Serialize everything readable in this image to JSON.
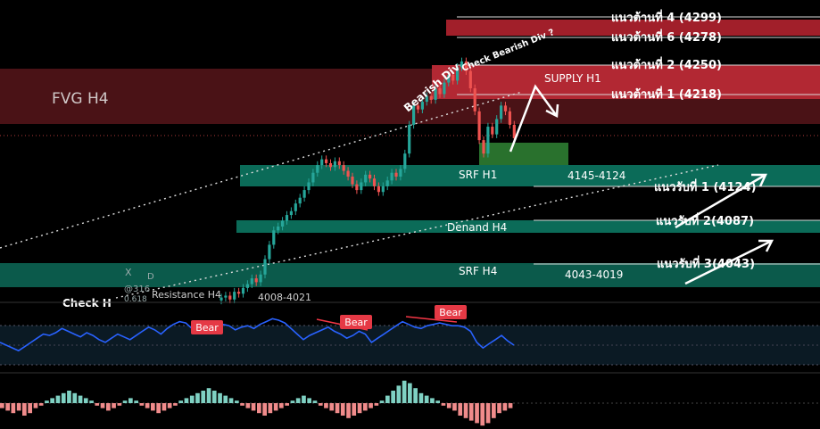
{
  "zones": {
    "fvg_h4": "FVG H4",
    "supply_h1": "SUPPLY H1",
    "srf_h1": "SRF H1",
    "srf_h1_range": "4145-4124",
    "demand_h4": "Denand H4",
    "srf_h4": "SRF H4",
    "srf_h4_range": "4043-4019",
    "resistance_h4": "Resistance H4",
    "resistance_h4_range": "4008-4021",
    "check_h": "Check H"
  },
  "levels": {
    "r4": "แนวต้านที่ 4 (4299)",
    "r6": "แนวต้านที่ 6 (4278)",
    "r2": "แนวต้านที่ 2 (4250)",
    "r1": "แนวต้านที่ 1 (4218)",
    "s1": "แนวรับที่ 1 (4124)",
    "s2": "แนวรับที่ 2(4087)",
    "s3": "แนวรับที่ 3(4043)"
  },
  "annotations": {
    "bearish_div": "Bearish Div",
    "check_bearish_div": "Check Bearish Div ?",
    "bear": [
      "Bear",
      "Bear",
      "Bear"
    ],
    "misc": [
      "X",
      "D",
      "@316",
      "0.618"
    ]
  },
  "colors": {
    "up": "#26a69a",
    "down": "#ef5350",
    "rsi_line": "#2962ff",
    "supply_red": "#b22833",
    "fvg_dark_red": "#4a1216",
    "demand_green": "#0b6b58",
    "bear_label": "#e53945",
    "div_line": "#f23645"
  },
  "chart_data": [
    {
      "type": "candlestick",
      "close": [
        4000,
        4002,
        3998,
        4006,
        4004,
        4010,
        4014,
        4020,
        4016,
        4024,
        4040,
        4055,
        4070,
        4074,
        4080,
        4086,
        4090,
        4098,
        4104,
        4112,
        4120,
        4130,
        4138,
        4144,
        4140,
        4136,
        4142,
        4138,
        4132,
        4126,
        4118,
        4112,
        4120,
        4128,
        4124,
        4116,
        4110,
        4116,
        4122,
        4130,
        4126,
        4134,
        4150,
        4180,
        4200,
        4196,
        4204,
        4210,
        4206,
        4218,
        4212,
        4224,
        4232,
        4226,
        4240,
        4246,
        4236,
        4218,
        4194,
        4164,
        4150,
        4178,
        4170,
        4186,
        4200,
        4194,
        4180,
        4166
      ],
      "y_range": [
        3995,
        4310
      ]
    },
    {
      "type": "line",
      "name": "RSI",
      "values": [
        50,
        48,
        46,
        44,
        47,
        50,
        53,
        56,
        55,
        57,
        60,
        58,
        56,
        54,
        57,
        55,
        52,
        50,
        53,
        56,
        54,
        52,
        55,
        58,
        61,
        59,
        56,
        60,
        63,
        65,
        64,
        60,
        57,
        59,
        62,
        64,
        63,
        62,
        59,
        61,
        62,
        60,
        63,
        65,
        67,
        66,
        64,
        60,
        56,
        52,
        55,
        57,
        59,
        61,
        58,
        56,
        53,
        55,
        58,
        56,
        50,
        53,
        56,
        59,
        62,
        65,
        63,
        61,
        60,
        62,
        63,
        64,
        63,
        62,
        62,
        61,
        58,
        50,
        46,
        49,
        52,
        55,
        51,
        48
      ],
      "y_range": [
        30,
        75
      ]
    },
    {
      "type": "bar",
      "name": "MACD histogram",
      "values": [
        -2,
        -3,
        -4,
        -3,
        -5,
        -4,
        -2,
        -1,
        1,
        2,
        3,
        4,
        5,
        4,
        3,
        2,
        1,
        -1,
        -2,
        -3,
        -2,
        -1,
        1,
        2,
        1,
        -1,
        -2,
        -3,
        -4,
        -3,
        -2,
        -1,
        1,
        2,
        3,
        4,
        5,
        6,
        5,
        4,
        3,
        2,
        1,
        -1,
        -2,
        -3,
        -4,
        -5,
        -4,
        -3,
        -2,
        -1,
        1,
        2,
        3,
        2,
        1,
        -1,
        -2,
        -3,
        -4,
        -5,
        -6,
        -5,
        -4,
        -3,
        -2,
        -1,
        1,
        3,
        5,
        7,
        9,
        8,
        6,
        4,
        3,
        2,
        1,
        -1,
        -2,
        -3,
        -5,
        -6,
        -7,
        -8,
        -9,
        -8,
        -6,
        -4,
        -3,
        -2
      ],
      "y_range": [
        -10,
        10
      ]
    }
  ]
}
